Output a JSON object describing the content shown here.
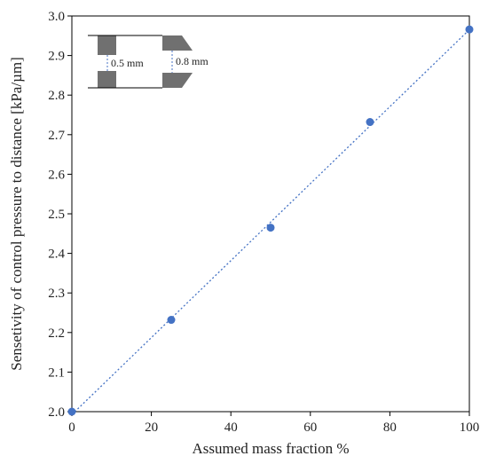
{
  "chart_data": {
    "type": "scatter",
    "title": "",
    "xlabel": "Assumed mass fraction %",
    "ylabel": "Sensetivity of control pressure to distance [kPa/µm]",
    "xlim": [
      0,
      100
    ],
    "ylim": [
      2.0,
      3.0
    ],
    "x_ticks": [
      0,
      20,
      40,
      60,
      80,
      100
    ],
    "y_ticks": [
      "2.0",
      "2.1",
      "2.2",
      "2.3",
      "2.4",
      "2.5",
      "2.6",
      "2.7",
      "2.8",
      "2.9",
      "3.0"
    ],
    "grid": false,
    "legend": "none",
    "series": [
      {
        "x": [
          0,
          25,
          50,
          75,
          100
        ],
        "y": [
          2.0,
          2.232,
          2.465,
          2.732,
          2.966
        ],
        "marker_color": "#4472C4",
        "trendline": "linear, dotted",
        "trendline_color": "#4472C4"
      }
    ],
    "inset": {
      "description_labels": [
        "0.5 mm",
        "0.8 mm"
      ],
      "fill_color": "#707070"
    }
  }
}
